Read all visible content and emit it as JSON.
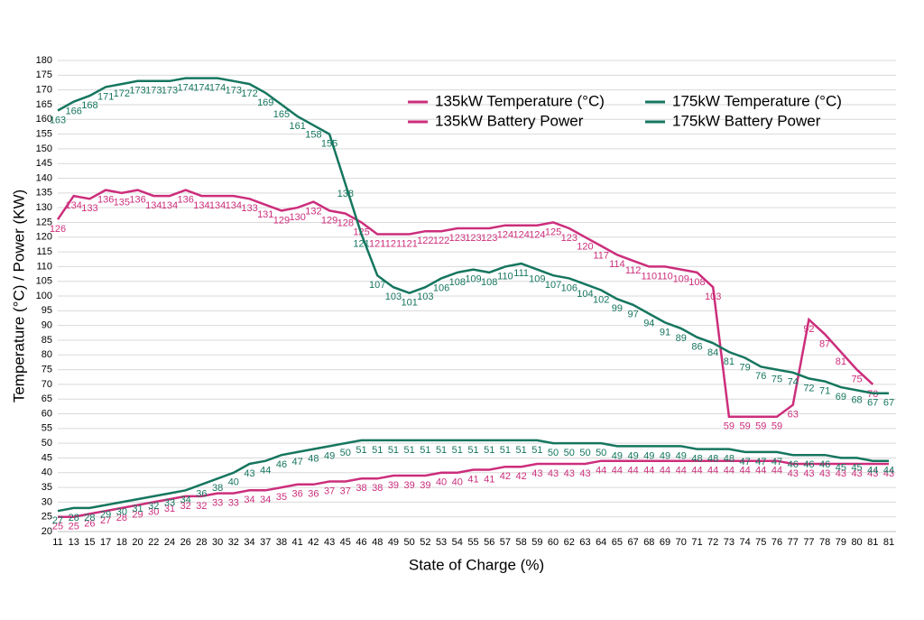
{
  "chart_data": {
    "type": "line",
    "x_label": "State of Charge (%)",
    "y_label": "Temperature (°C) / Power (KW)",
    "categories": [
      "11",
      "13",
      "15",
      "17",
      "18",
      "20",
      "22",
      "24",
      "26",
      "28",
      "30",
      "32",
      "34",
      "37",
      "38",
      "41",
      "42",
      "43",
      "45",
      "46",
      "48",
      "49",
      "50",
      "52",
      "53",
      "54",
      "55",
      "56",
      "57",
      "58",
      "59",
      "60",
      "62",
      "63",
      "64",
      "65",
      "67",
      "68",
      "69",
      "70",
      "71",
      "72",
      "73",
      "74",
      "75",
      "76",
      "77",
      "77",
      "78",
      "79",
      "80",
      "81",
      "81"
    ],
    "series": [
      {
        "name": "135kW Temperature (°C)",
        "color": "#cc2e7c",
        "values": [
          126,
          134,
          133,
          136,
          135,
          136,
          134,
          134,
          136,
          134,
          134,
          134,
          133,
          131,
          129,
          130,
          132,
          129,
          128,
          125,
          121,
          121,
          121,
          122,
          122,
          123,
          123,
          123,
          124,
          124,
          124,
          125,
          123,
          120,
          117,
          114,
          112,
          110,
          110,
          109,
          108,
          103,
          59,
          59,
          59,
          59,
          63,
          92,
          87,
          81,
          75,
          70,
          null
        ]
      },
      {
        "name": "175kW Temperature (°C)",
        "color": "#16765f",
        "values": [
          163,
          166,
          168,
          171,
          172,
          173,
          173,
          173,
          174,
          174,
          174,
          173,
          172,
          169,
          165,
          161,
          158,
          155,
          138,
          121,
          107,
          103,
          101,
          103,
          106,
          108,
          109,
          108,
          110,
          111,
          109,
          107,
          106,
          104,
          102,
          99,
          97,
          94,
          91,
          89,
          86,
          84,
          81,
          79,
          76,
          75,
          74,
          72,
          71,
          69,
          68,
          67,
          67
        ]
      },
      {
        "name": "135kW Battery Power",
        "color": "#cc2e7c",
        "values": [
          25,
          25,
          26,
          27,
          28,
          29,
          30,
          31,
          32,
          32,
          33,
          33,
          34,
          34,
          35,
          36,
          36,
          37,
          37,
          38,
          38,
          39,
          39,
          39,
          40,
          40,
          41,
          41,
          42,
          42,
          43,
          43,
          43,
          43,
          44,
          44,
          44,
          44,
          44,
          44,
          44,
          44,
          44,
          44,
          44,
          44,
          43,
          43,
          43,
          43,
          43,
          43,
          43
        ]
      },
      {
        "name": "175kW Battery Power",
        "color": "#16765f",
        "values": [
          27,
          28,
          28,
          29,
          30,
          31,
          32,
          33,
          34,
          36,
          38,
          40,
          43,
          44,
          46,
          47,
          48,
          49,
          50,
          51,
          51,
          51,
          51,
          51,
          51,
          51,
          51,
          51,
          51,
          51,
          51,
          50,
          50,
          50,
          50,
          49,
          49,
          49,
          49,
          49,
          48,
          48,
          48,
          47,
          47,
          47,
          46,
          46,
          46,
          45,
          45,
          44,
          44
        ]
      }
    ],
    "ylim": [
      20,
      180
    ],
    "yticks": [
      20,
      25,
      30,
      35,
      40,
      45,
      50,
      55,
      60,
      65,
      70,
      75,
      80,
      85,
      90,
      95,
      100,
      105,
      110,
      115,
      120,
      125,
      130,
      135,
      140,
      145,
      150,
      155,
      160,
      165,
      170,
      175,
      180
    ],
    "grid": true,
    "legend": "upper right"
  }
}
